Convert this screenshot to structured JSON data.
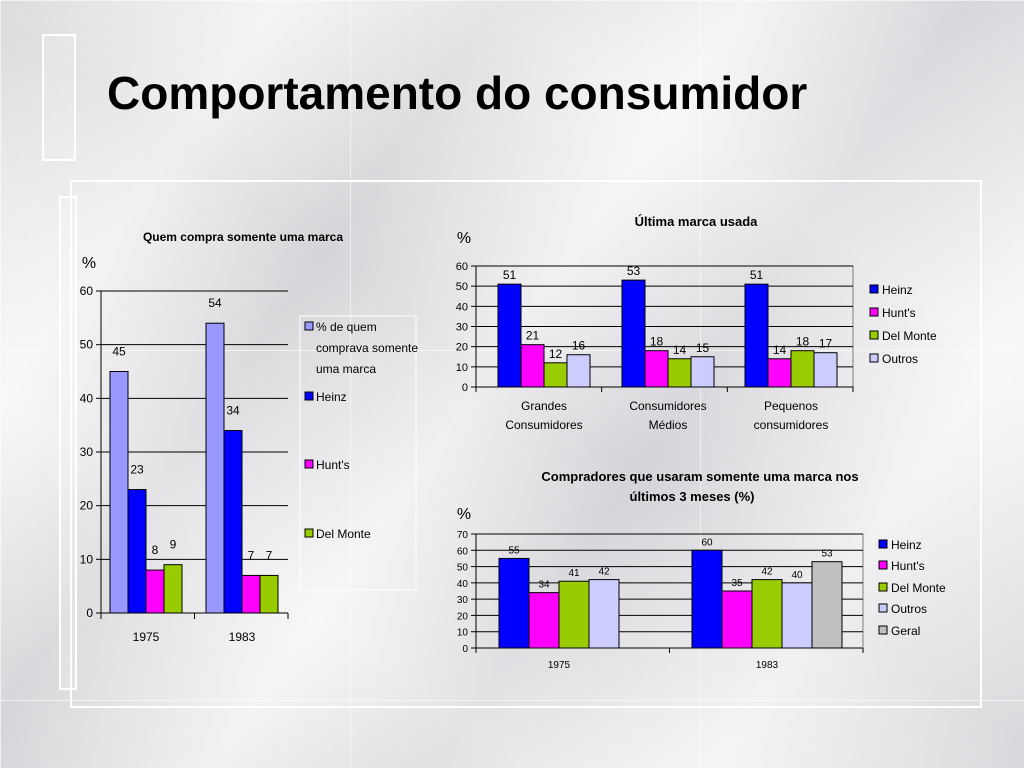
{
  "slide": {
    "title": "Comportamento do consumidor"
  },
  "colors": {
    "series1": "#9999ff",
    "heinz": "#0000ff",
    "hunts": "#ff00ff",
    "delmonte": "#99cc00",
    "outros": "#ccccff",
    "geral": "#c0c0c0"
  },
  "chart_data": [
    {
      "type": "bar",
      "title": "Quem compra somente uma marca",
      "ylabel": "%",
      "ylim": [
        0,
        60
      ],
      "yticks": [
        "0",
        "10",
        "20",
        "30",
        "40",
        "50",
        "60"
      ],
      "categories": [
        "1975",
        "1983"
      ],
      "series": [
        {
          "name": "% de quem comprava somente uma marca",
          "values": [
            45,
            54
          ]
        },
        {
          "name": "Heinz",
          "values": [
            23,
            34
          ]
        },
        {
          "name": "Hunt's",
          "values": [
            8,
            7
          ]
        },
        {
          "name": "Del Monte",
          "values": [
            9,
            7
          ]
        }
      ],
      "legend": "right",
      "grid": true
    },
    {
      "type": "bar",
      "title": "Última marca usada",
      "ylabel": "%",
      "ylim": [
        0,
        60
      ],
      "yticks": [
        "0",
        "10",
        "20",
        "30",
        "40",
        "50",
        "60"
      ],
      "categories": [
        "Grandes Consumidores",
        "Consumidores Médios",
        "Pequenos consumidores"
      ],
      "series": [
        {
          "name": "Heinz",
          "values": [
            51,
            53,
            51
          ]
        },
        {
          "name": "Hunt's",
          "values": [
            21,
            18,
            14
          ]
        },
        {
          "name": "Del Monte",
          "values": [
            12,
            14,
            18
          ]
        },
        {
          "name": "Outros",
          "values": [
            16,
            15,
            17
          ]
        }
      ],
      "legend": "right",
      "grid": true
    },
    {
      "type": "bar",
      "title": "Compradores que usaram somente uma marca nos últimos 3 meses (%)",
      "ylabel": "%",
      "ylim": [
        0,
        70
      ],
      "yticks": [
        "0",
        "10",
        "20",
        "30",
        "40",
        "50",
        "60",
        "70"
      ],
      "categories": [
        "1975",
        "1983"
      ],
      "series": [
        {
          "name": "Heinz",
          "values": [
            55,
            60
          ]
        },
        {
          "name": "Hunt's",
          "values": [
            34,
            35
          ]
        },
        {
          "name": "Del Monte",
          "values": [
            41,
            42
          ]
        },
        {
          "name": "Outros",
          "values": [
            42,
            40
          ]
        },
        {
          "name": "Geral",
          "values": [
            null,
            53
          ]
        }
      ],
      "legend": "right",
      "grid": true
    }
  ]
}
